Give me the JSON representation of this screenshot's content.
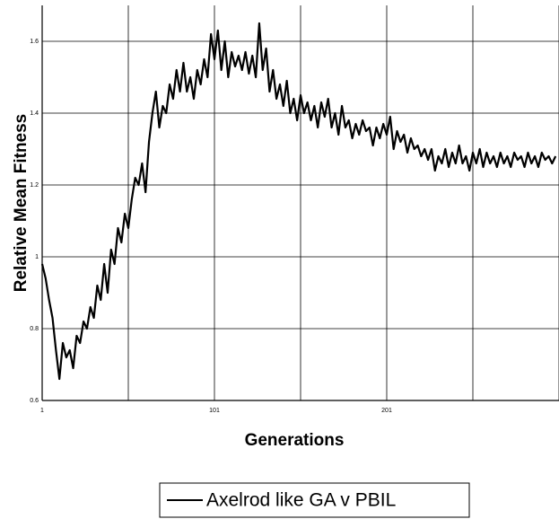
{
  "chart_data": {
    "type": "line",
    "x_axis_label": "Generations",
    "y_axis_label": "Relative Mean Fitness",
    "x": [
      1,
      3,
      5,
      7,
      9,
      11,
      13,
      15,
      17,
      19,
      21,
      23,
      25,
      27,
      29,
      31,
      33,
      35,
      37,
      39,
      41,
      43,
      45,
      47,
      49,
      51,
      53,
      55,
      57,
      59,
      61,
      63,
      65,
      67,
      69,
      71,
      73,
      75,
      77,
      79,
      81,
      83,
      85,
      87,
      89,
      91,
      93,
      95,
      97,
      99,
      101,
      103,
      105,
      107,
      109,
      111,
      113,
      115,
      117,
      119,
      121,
      123,
      125,
      127,
      129,
      131,
      133,
      135,
      137,
      139,
      141,
      143,
      145,
      147,
      149,
      151,
      153,
      155,
      157,
      159,
      161,
      163,
      165,
      167,
      169,
      171,
      173,
      175,
      177,
      179,
      181,
      183,
      185,
      187,
      189,
      191,
      193,
      195,
      197,
      199,
      201,
      203,
      205,
      207,
      209,
      211,
      213,
      215,
      217,
      219,
      221,
      223,
      225,
      227,
      229,
      231,
      233,
      235,
      237,
      239,
      241,
      243,
      245,
      247,
      249,
      251,
      253,
      255,
      257,
      259,
      261,
      263,
      265,
      267,
      269,
      271,
      273,
      275,
      277,
      279,
      281,
      283,
      285,
      287,
      289,
      291,
      293,
      295,
      297,
      299
    ],
    "series": [
      {
        "name": "Axelrod like GA v PBIL",
        "color": "#000000",
        "values": [
          0.98,
          0.94,
          0.88,
          0.83,
          0.74,
          0.66,
          0.76,
          0.72,
          0.74,
          0.69,
          0.78,
          0.76,
          0.82,
          0.8,
          0.86,
          0.83,
          0.92,
          0.88,
          0.98,
          0.9,
          1.02,
          0.98,
          1.08,
          1.04,
          1.12,
          1.08,
          1.16,
          1.22,
          1.2,
          1.26,
          1.18,
          1.32,
          1.4,
          1.46,
          1.36,
          1.42,
          1.4,
          1.48,
          1.44,
          1.52,
          1.46,
          1.54,
          1.46,
          1.5,
          1.44,
          1.52,
          1.48,
          1.55,
          1.5,
          1.62,
          1.55,
          1.63,
          1.52,
          1.6,
          1.5,
          1.57,
          1.53,
          1.56,
          1.52,
          1.57,
          1.51,
          1.56,
          1.5,
          1.65,
          1.52,
          1.58,
          1.46,
          1.52,
          1.44,
          1.48,
          1.42,
          1.49,
          1.4,
          1.44,
          1.38,
          1.45,
          1.4,
          1.43,
          1.38,
          1.42,
          1.36,
          1.43,
          1.39,
          1.44,
          1.36,
          1.4,
          1.34,
          1.42,
          1.36,
          1.38,
          1.33,
          1.37,
          1.34,
          1.38,
          1.35,
          1.36,
          1.31,
          1.36,
          1.33,
          1.37,
          1.34,
          1.39,
          1.3,
          1.35,
          1.32,
          1.34,
          1.29,
          1.33,
          1.3,
          1.31,
          1.28,
          1.3,
          1.27,
          1.3,
          1.24,
          1.28,
          1.26,
          1.3,
          1.25,
          1.29,
          1.26,
          1.31,
          1.26,
          1.28,
          1.24,
          1.29,
          1.26,
          1.3,
          1.25,
          1.29,
          1.26,
          1.28,
          1.25,
          1.29,
          1.26,
          1.28,
          1.25,
          1.29,
          1.27,
          1.28,
          1.25,
          1.29,
          1.26,
          1.28,
          1.25,
          1.29,
          1.27,
          1.28,
          1.26,
          1.28
        ]
      }
    ],
    "xlim": [
      1,
      301
    ],
    "xticks": [
      1,
      101,
      201
    ],
    "x_grid_lines": [
      51,
      151,
      251,
      301
    ],
    "ylim": [
      0.6,
      1.7
    ],
    "yticks": [
      0.6,
      0.8,
      1,
      1.2,
      1.4,
      1.6
    ],
    "grid": true,
    "legend": "bottom"
  }
}
